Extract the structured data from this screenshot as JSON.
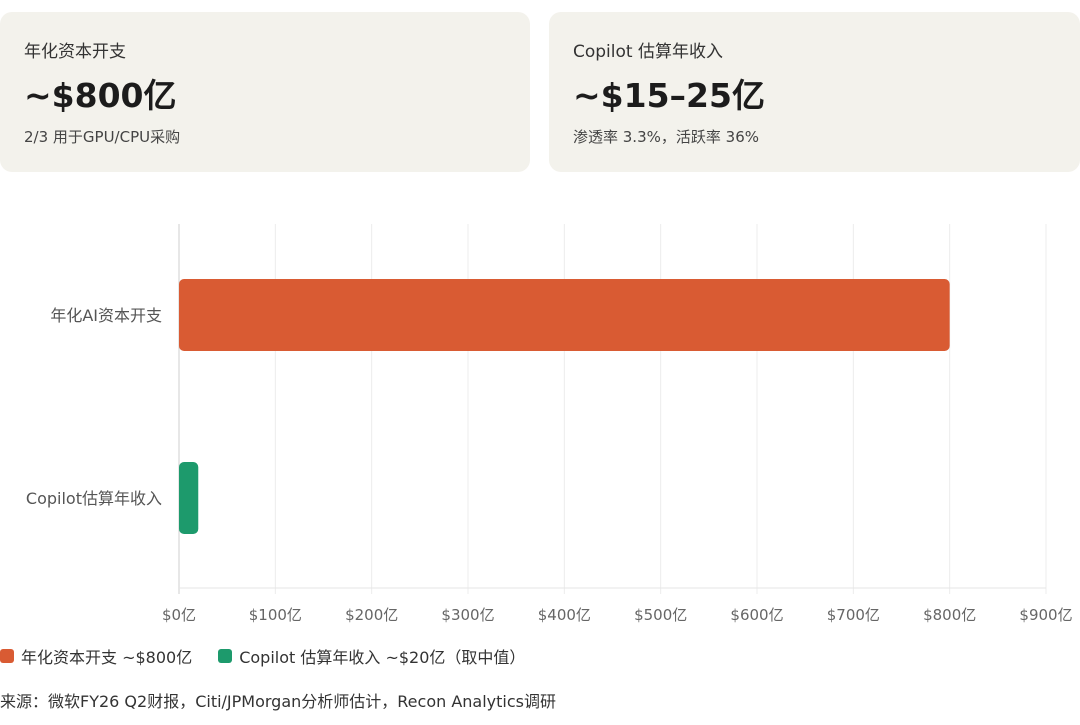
{
  "cards": [
    {
      "label": "年化资本开支",
      "value": "~$800亿",
      "sub": "2/3 用于GPU/CPU采购"
    },
    {
      "label": "Copilot 估算年收入",
      "value": "~$15–25亿",
      "sub": "渗透率 3.3%，活跃率 36%"
    }
  ],
  "chart_data": {
    "type": "bar",
    "orientation": "horizontal",
    "categories": [
      "年化AI资本开支",
      "Copilot估算年收入"
    ],
    "values": [
      800,
      20
    ],
    "colors": [
      "#d95b33",
      "#1d9a6c"
    ],
    "xlim": [
      0,
      900
    ],
    "xticks": [
      0,
      100,
      200,
      300,
      400,
      500,
      600,
      700,
      800,
      900
    ],
    "xtick_labels": [
      "$0亿",
      "$100亿",
      "$200亿",
      "$300亿",
      "$400亿",
      "$500亿",
      "$600亿",
      "$700亿",
      "$800亿",
      "$900亿"
    ],
    "grid": true,
    "legend": [
      {
        "label": "年化资本开支 ~$800亿",
        "color": "#d95b33"
      },
      {
        "label": "Copilot 估算年收入 ~$20亿（取中值）",
        "color": "#1d9a6c"
      }
    ],
    "legend_position": "bottom-left"
  },
  "source": "来源：微软FY26 Q2财报，Citi/JPMorgan分析师估计，Recon Analytics调研"
}
